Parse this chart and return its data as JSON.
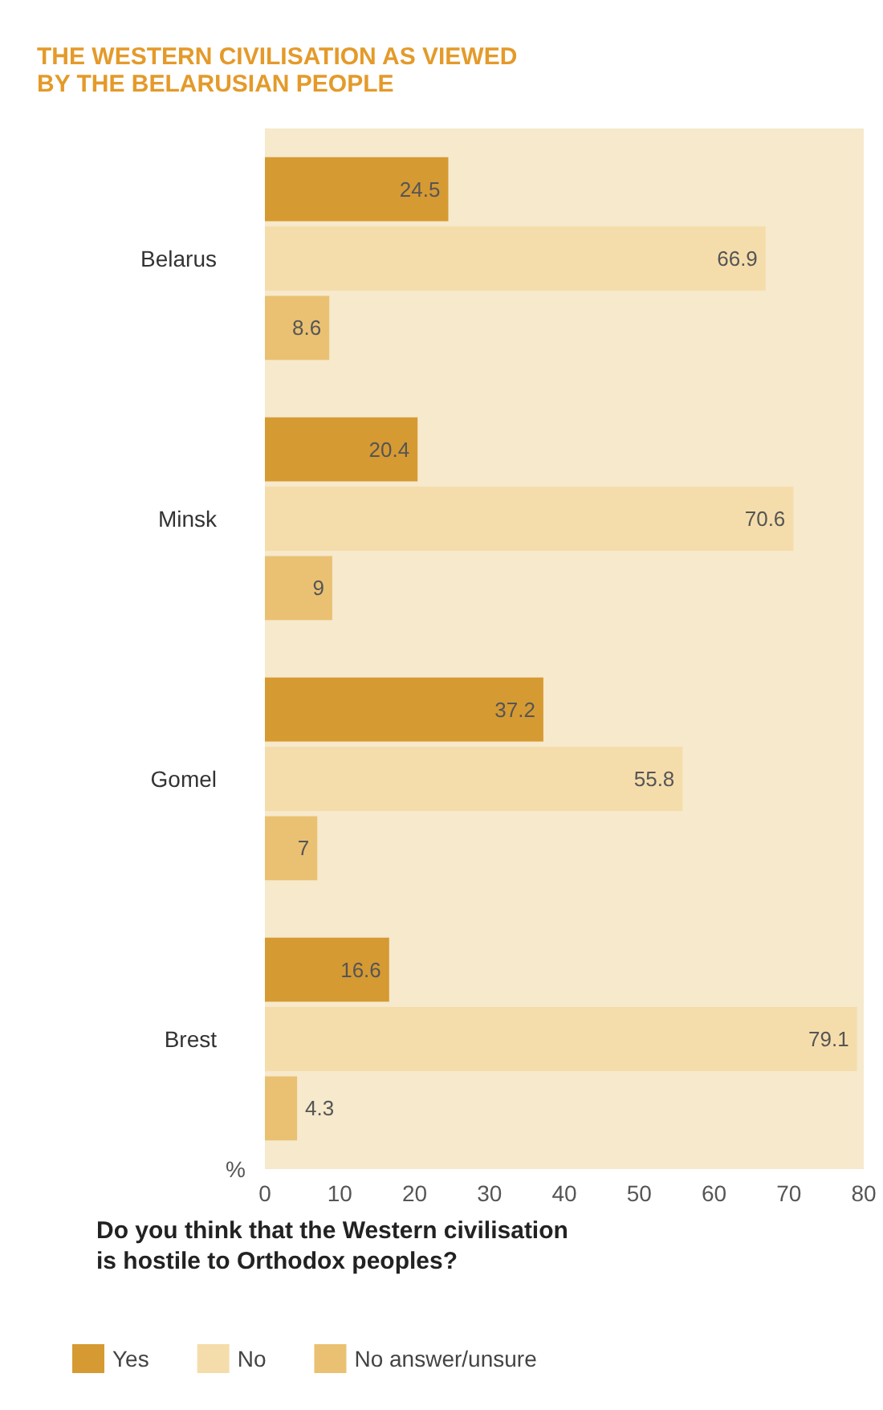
{
  "chart_data": {
    "type": "bar",
    "orientation": "horizontal",
    "title": "THE WESTERN CIVILISATION AS VIEWED\nBY THE BELARUSIAN PEOPLE",
    "xlabel": "%",
    "annotations": [
      "Do you think that the Western civilisation\nis hostile to Orthodox peoples?"
    ],
    "categories": [
      "Belarus",
      "Minsk",
      "Gomel",
      "Brest"
    ],
    "series": [
      {
        "name": "Yes",
        "color": "#d69a32",
        "values": [
          24.5,
          20.4,
          37.2,
          16.6
        ]
      },
      {
        "name": "No",
        "color": "#f5ddab",
        "values": [
          66.9,
          70.6,
          55.8,
          79.1
        ]
      },
      {
        "name": "No answer/unsure",
        "color": "#eac172",
        "values": [
          8.6,
          9,
          7,
          4.3
        ]
      }
    ],
    "xlim": [
      0,
      80
    ],
    "xticks": [
      0,
      10,
      20,
      30,
      40,
      50,
      60,
      70,
      80
    ],
    "data_labels": true,
    "grid": false,
    "legend": "bottom"
  }
}
